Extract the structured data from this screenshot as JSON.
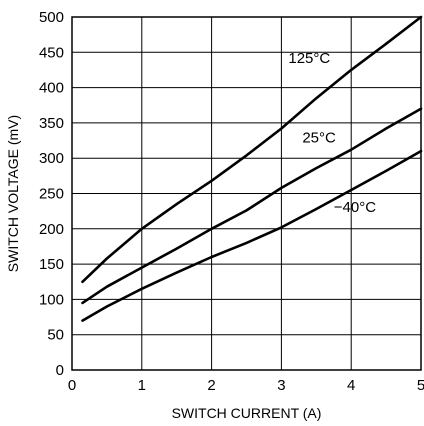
{
  "chart_data": {
    "type": "line",
    "title": "",
    "xlabel": "SWITCH CURRENT (A)",
    "ylabel": "SWITCH VOLTAGE (mV)",
    "xlim": [
      0,
      5
    ],
    "ylim": [
      0,
      500
    ],
    "x_ticks": [
      0,
      1,
      2,
      3,
      4,
      5
    ],
    "y_ticks": [
      0,
      50,
      100,
      150,
      200,
      250,
      300,
      350,
      400,
      450,
      500
    ],
    "grid": true,
    "series": [
      {
        "name": "125°C",
        "x": [
          0.15,
          0.5,
          1.0,
          1.5,
          2.0,
          2.5,
          3.0,
          3.5,
          4.0,
          4.5,
          5.0
        ],
        "y": [
          125,
          158,
          200,
          235,
          268,
          304,
          342,
          385,
          425,
          462,
          500
        ]
      },
      {
        "name": "25°C",
        "x": [
          0.15,
          0.5,
          1.0,
          1.5,
          2.0,
          2.5,
          3.0,
          3.5,
          4.0,
          4.5,
          5.0
        ],
        "y": [
          95,
          118,
          145,
          172,
          200,
          226,
          258,
          286,
          312,
          342,
          370
        ]
      },
      {
        "name": "−40°C",
        "x": [
          0.15,
          0.5,
          1.0,
          1.5,
          2.0,
          2.5,
          3.0,
          3.5,
          4.0,
          4.5,
          5.0
        ],
        "y": [
          70,
          90,
          115,
          138,
          160,
          180,
          202,
          228,
          255,
          282,
          310
        ]
      }
    ]
  }
}
